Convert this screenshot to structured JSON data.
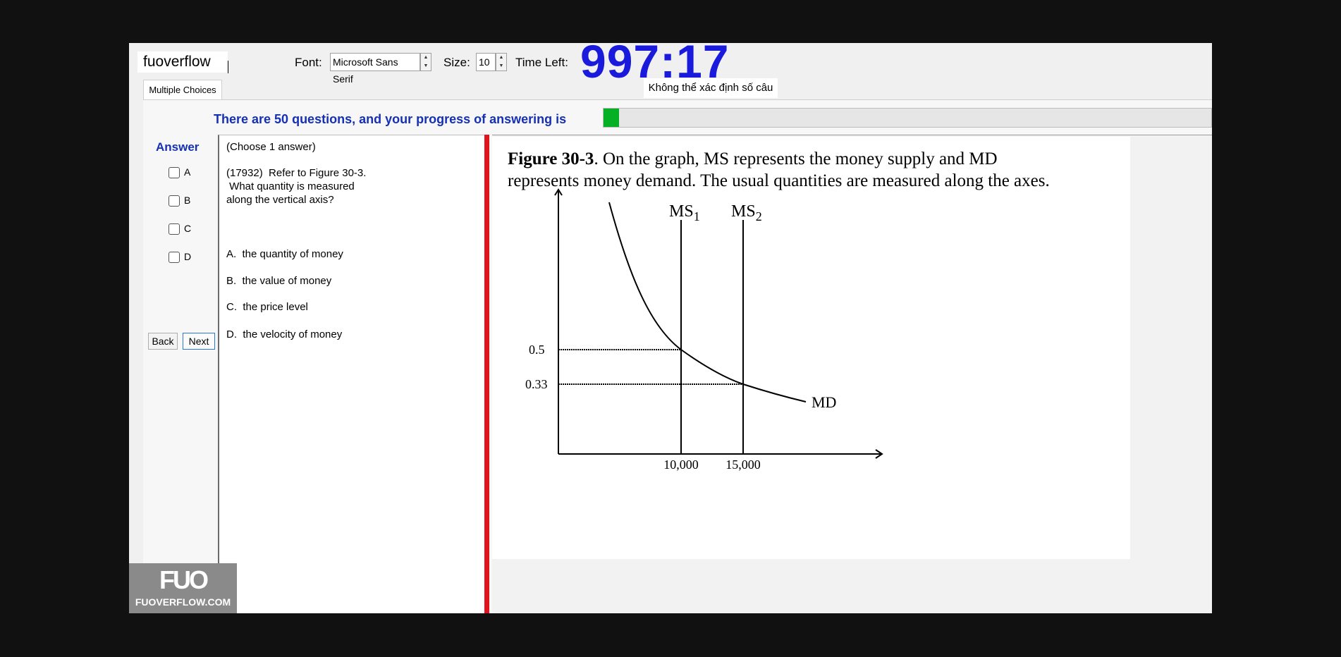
{
  "header": {
    "brand": "fuoverflow",
    "font_label": "Font:",
    "font_value": "Microsoft Sans Serif",
    "size_label": "Size:",
    "size_value": "10",
    "time_label": "Time Left:",
    "time_value": "997:17",
    "count_note": "Không thể xác định số câu"
  },
  "tab": {
    "label": "Multiple Choices"
  },
  "progress": {
    "text": "There are 50 questions, and your progress of answering is",
    "fraction": 0.026
  },
  "answer": {
    "title": "Answer",
    "options": [
      "A",
      "B",
      "C",
      "D"
    ],
    "back_label": "Back",
    "next_label": "Next"
  },
  "question": {
    "instruction": "(Choose 1 answer)",
    "stem_lines": [
      "(17932)  Refer to Figure 30-3.",
      " What quantity is measured",
      "along the vertical axis?"
    ],
    "choices": [
      "A.  the quantity of money",
      "B.  the value of money",
      "C.  the price level",
      "D.  the velocity of money"
    ]
  },
  "figure": {
    "caption_bold": "Figure 30-3",
    "caption_rest": ".   On the graph, MS represents the money supply and MD",
    "caption_line2": "represents money demand.   The usual quantities are measured along the axes.",
    "ms1": "MS",
    "ms1_sub": "1",
    "ms2": "MS",
    "ms2_sub": "2",
    "md": "MD",
    "y_tick_1": "0.5",
    "y_tick_2": "0.33",
    "x_tick_1": "10,000",
    "x_tick_2": "15,000"
  },
  "watermark": {
    "logo": "FUO",
    "site": "FUOVERFLOW.COM"
  }
}
